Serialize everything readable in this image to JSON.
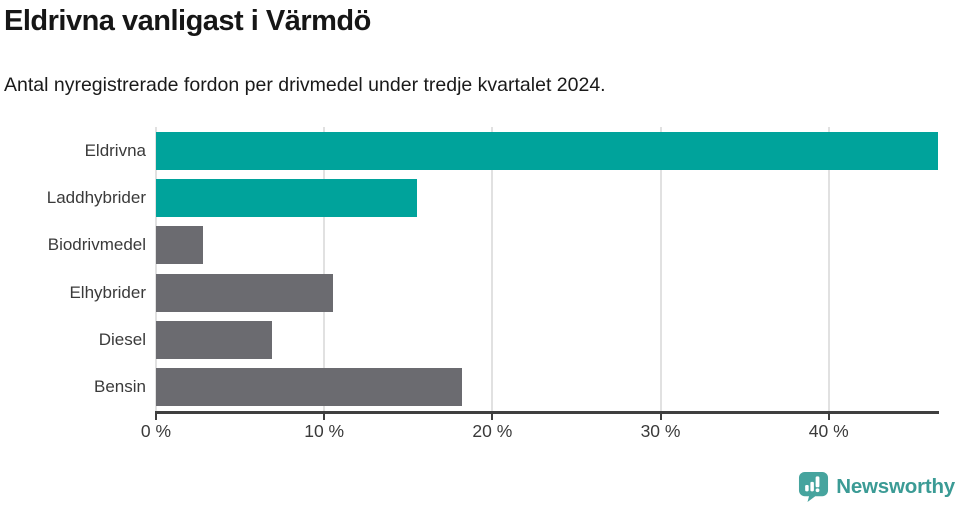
{
  "header": {
    "title": "Eldrivna vanligast i Värmdö",
    "subtitle": "Antal nyregistrerade fordon per drivmedel under tredje kvartalet 2024."
  },
  "chart_data": {
    "type": "bar",
    "orientation": "horizontal",
    "title": "Eldrivna vanligast i Värmdö",
    "subtitle": "Antal nyregistrerade fordon per drivmedel under tredje kvartalet 2024.",
    "categories": [
      "Eldrivna",
      "Laddhybrider",
      "Biodrivmedel",
      "Elhybrider",
      "Diesel",
      "Bensin"
    ],
    "values": [
      46.5,
      15.5,
      2.8,
      10.5,
      6.9,
      18.2
    ],
    "unit": "%",
    "bar_colors": [
      "#00a39b",
      "#00a39b",
      "#6b6b70",
      "#6b6b70",
      "#6b6b70",
      "#6b6b70"
    ],
    "highlight_color": "#00a39b",
    "default_color": "#6b6b70",
    "xlabel": "",
    "ylabel": "",
    "xlim": [
      0,
      46.5
    ],
    "xticks": [
      0,
      10,
      20,
      30,
      40
    ],
    "xtick_labels": [
      "0 %",
      "10 %",
      "20 %",
      "30 %",
      "40 %"
    ],
    "grid": "vertical-gridlines",
    "gridline_color": "#e1e1e1",
    "axis_color": "#3f3f3f",
    "legend": "none"
  },
  "footer": {
    "brand": "Newsworthy",
    "logo_icon": "bar-chart-speech-bubble-icon",
    "brand_color": "#3b9b95",
    "icon_color": "#46a49e"
  },
  "colors": {
    "accent_teal": "#00a39b",
    "neutral_gray": "#6b6b70",
    "text_dark": "#1a1a1a",
    "label_gray": "#3a3a3a"
  }
}
